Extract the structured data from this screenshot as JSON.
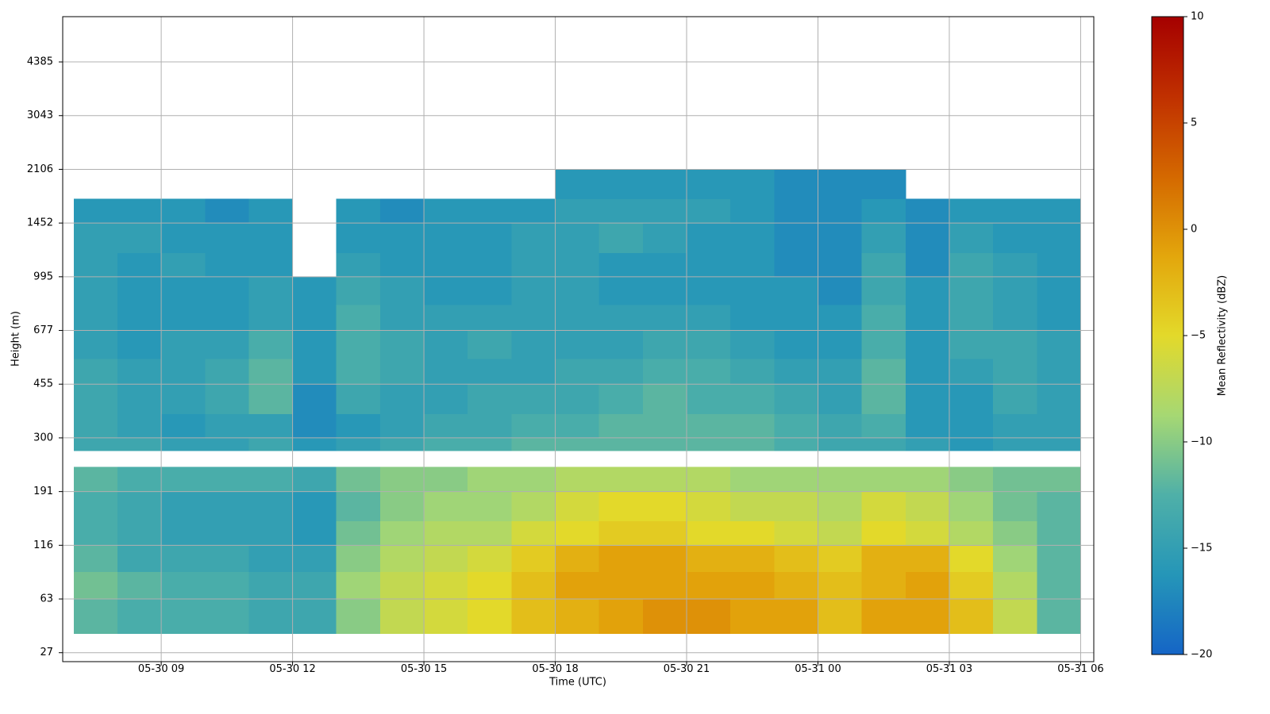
{
  "chart_data": {
    "type": "heatmap",
    "xlabel": "Time (UTC)",
    "ylabel": "Height (m)",
    "colorbar_label": "Mean Reflectivity (dBZ)",
    "xlim": [
      "05-30 06:45",
      "05-31 06:18"
    ],
    "xticks": [
      "05-30 09",
      "05-30 12",
      "05-30 15",
      "05-30 18",
      "05-30 21",
      "05-31 00",
      "05-31 03",
      "05-31 06"
    ],
    "ylim": [
      21,
      5516
    ],
    "yticks": [
      27,
      63,
      116,
      191,
      300,
      455,
      677,
      995,
      1452,
      2106,
      3043,
      4385
    ],
    "x_bins": [
      "05-30 07",
      "05-30 08",
      "05-30 09",
      "05-30 10",
      "05-30 11",
      "05-30 12",
      "05-30 13",
      "05-30 14",
      "05-30 15",
      "05-30 16",
      "05-30 17",
      "05-30 18",
      "05-30 19",
      "05-30 20",
      "05-30 21",
      "05-30 22",
      "05-30 23",
      "05-31 00",
      "05-31 01",
      "05-31 02",
      "05-31 03",
      "05-31 04",
      "05-31 05",
      "05-31 06"
    ],
    "y_bins": [
      40,
      63,
      90,
      116,
      150,
      191,
      241,
      274,
      300,
      370,
      455,
      560,
      677,
      830,
      995,
      1200,
      1452,
      1750,
      2106
    ],
    "values": [
      [
        -12,
        -13,
        -13,
        -13,
        -14,
        -14,
        -10,
        -7,
        -6,
        -5,
        -3,
        -2,
        -1,
        0,
        0,
        -1,
        -1,
        -3,
        -1,
        -1,
        -3,
        -7,
        -12
      ],
      [
        -11,
        -12,
        -13,
        -13,
        -14,
        -14,
        -9,
        -7,
        -6,
        -5,
        -3,
        -1,
        -1,
        -1,
        -1,
        -1,
        -2,
        -3,
        -2,
        -1,
        -4,
        -8,
        -12
      ],
      [
        -12,
        -14,
        -14,
        -14,
        -15,
        -15,
        -10,
        -8,
        -7,
        -6,
        -4,
        -2,
        -1,
        -1,
        -2,
        -2,
        -3,
        -4,
        -2,
        -2,
        -5,
        -9,
        -12
      ],
      [
        -13,
        -14,
        -15,
        -15,
        -15,
        -16,
        -11,
        -9,
        -8,
        -8,
        -6,
        -5,
        -4,
        -4,
        -5,
        -5,
        -6,
        -7,
        -5,
        -6,
        -8,
        -10,
        -12
      ],
      [
        -13,
        -14,
        -15,
        -15,
        -15,
        -16,
        -12,
        -10,
        -9,
        -9,
        -8,
        -6,
        -5,
        -5,
        -6,
        -7,
        -7,
        -8,
        -6,
        -7,
        -9,
        -11,
        -12
      ],
      [
        -12,
        -13,
        -13,
        -13,
        -13,
        -14,
        -11,
        -10,
        -10,
        -9,
        -9,
        -8,
        -8,
        -8,
        -8,
        -9,
        -9,
        -9,
        -9,
        -9,
        -10,
        -11,
        -11
      ],
      [
        null,
        null,
        null,
        null,
        null,
        null,
        null,
        null,
        null,
        null,
        null,
        null,
        null,
        null,
        null,
        null,
        null,
        null,
        null,
        null,
        null,
        null,
        null
      ],
      [
        -14,
        -14,
        -15,
        -15,
        -14,
        -16,
        -15,
        -14,
        -13,
        -13,
        -12,
        -12,
        -12,
        -12,
        -12,
        -12,
        -13,
        -14,
        -14,
        -15,
        -16,
        -15,
        -15
      ],
      [
        -14,
        -15,
        -16,
        -15,
        -15,
        -17,
        -16,
        -15,
        -14,
        -14,
        -13,
        -13,
        -12,
        -12,
        -12,
        -12,
        -13,
        -14,
        -13,
        -16,
        -16,
        -15,
        -15
      ],
      [
        -14,
        -15,
        -15,
        -14,
        -12,
        -17,
        -14,
        -15,
        -15,
        -14,
        -14,
        -14,
        -13,
        -12,
        -13,
        -13,
        -14,
        -15,
        -12,
        -16,
        -16,
        -14,
        -15
      ],
      [
        -14,
        -15,
        -15,
        -14,
        -12,
        -16,
        -13,
        -14,
        -15,
        -15,
        -15,
        -14,
        -14,
        -13,
        -13,
        -14,
        -15,
        -15,
        -12,
        -16,
        -15,
        -14,
        -15
      ],
      [
        -15,
        -16,
        -15,
        -15,
        -13,
        -16,
        -13,
        -14,
        -15,
        -14,
        -15,
        -15,
        -15,
        -14,
        -14,
        -15,
        -16,
        -16,
        -13,
        -16,
        -14,
        -14,
        -15
      ],
      [
        -15,
        -16,
        -16,
        -16,
        -15,
        -16,
        -13,
        -15,
        -15,
        -15,
        -15,
        -15,
        -15,
        -15,
        -15,
        -16,
        -16,
        -16,
        -13,
        -16,
        -14,
        -15,
        -16
      ],
      [
        -15,
        -16,
        -16,
        -16,
        -15,
        -16,
        -14,
        -15,
        -16,
        -16,
        -15,
        -15,
        -16,
        -16,
        -16,
        -16,
        -16,
        -17,
        -14,
        -16,
        -14,
        -15,
        -16
      ],
      [
        -15,
        -16,
        -15,
        -16,
        -16,
        null,
        -15,
        -16,
        -16,
        -16,
        -15,
        -15,
        -16,
        -16,
        -16,
        -16,
        -17,
        -17,
        -14,
        -17,
        -14,
        -15,
        -16
      ],
      [
        -15,
        -15,
        -16,
        -16,
        -16,
        null,
        -16,
        -16,
        -16,
        -16,
        -15,
        -15,
        -14,
        -15,
        -16,
        -16,
        -17,
        -17,
        -15,
        -17,
        -15,
        -16,
        -16
      ],
      [
        -16,
        -16,
        -16,
        -17,
        -16,
        null,
        -16,
        -17,
        -16,
        -16,
        -16,
        -15,
        -15,
        -15,
        -15,
        -16,
        -17,
        -17,
        -16,
        -17,
        -16,
        -16,
        -16
      ],
      [
        null,
        null,
        null,
        null,
        null,
        null,
        null,
        null,
        null,
        null,
        null,
        -16,
        -16,
        -16,
        -16,
        -16,
        -17,
        -17,
        -17,
        null,
        null,
        null,
        null
      ]
    ],
    "clim": [
      -20,
      10
    ],
    "cticks": [
      {
        "value": -20,
        "label": "−20"
      },
      {
        "value": -15,
        "label": "−15"
      },
      {
        "value": -10,
        "label": "−10"
      },
      {
        "value": -5,
        "label": "−5"
      },
      0,
      5,
      10
    ],
    "colors": [
      "#1565c6",
      "#2596b8",
      "#4fb0a8",
      "#a6d873",
      "#e3d92a",
      "#e3a60c",
      "#d46800",
      "#c03000",
      "#a50000"
    ],
    "grid": true
  }
}
